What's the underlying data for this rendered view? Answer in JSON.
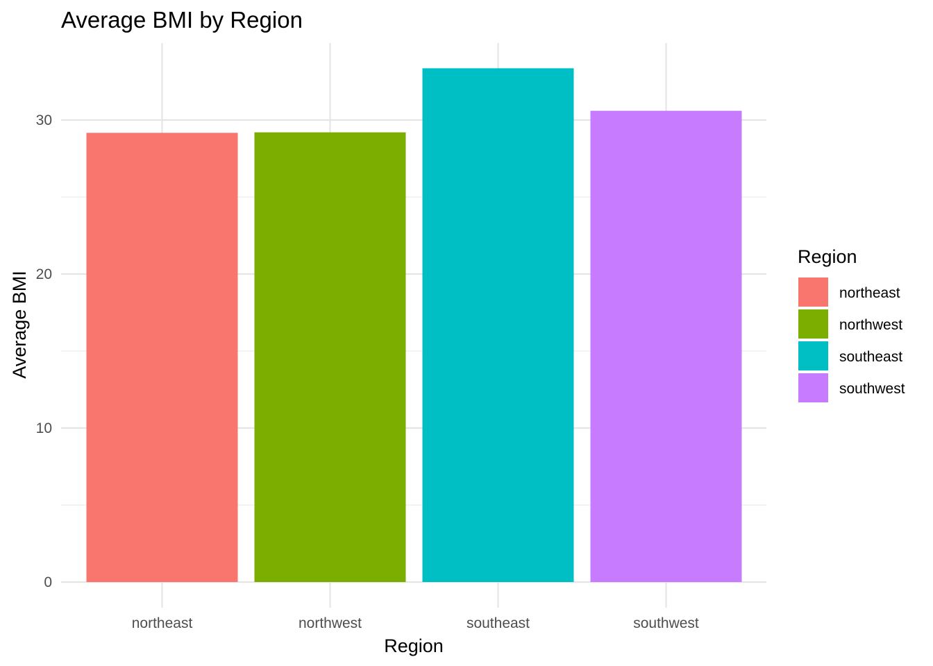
{
  "chart_data": {
    "type": "bar",
    "title": "Average BMI by Region",
    "xlabel": "Region",
    "ylabel": "Average BMI",
    "categories": [
      "northeast",
      "northwest",
      "southeast",
      "southwest"
    ],
    "values": [
      29.17,
      29.2,
      33.36,
      30.6
    ],
    "colors": [
      "#F8766D",
      "#7CAE00",
      "#00BFC4",
      "#C77CFF"
    ],
    "ylim": [
      0,
      35
    ],
    "y_ticks": [
      0,
      10,
      20,
      30
    ],
    "y_minor_ticks": [
      5,
      15,
      25
    ],
    "grid": true,
    "legend": {
      "title": "Region",
      "placement": "right",
      "entries": [
        "northeast",
        "northwest",
        "southeast",
        "southwest"
      ]
    }
  }
}
